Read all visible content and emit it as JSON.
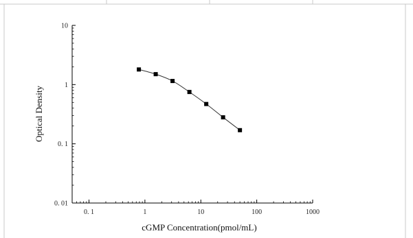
{
  "chart_data": {
    "type": "scatter",
    "title": "",
    "xlabel": "cGMP Concentration(pmol/mL)",
    "ylabel": "Optical Density",
    "xscale": "log",
    "yscale": "log",
    "xlim": [
      0.05,
      1000
    ],
    "ylim": [
      0.01,
      10
    ],
    "x_ticks": [
      {
        "value": 0.1,
        "label": "0. 1"
      },
      {
        "value": 1,
        "label": "1"
      },
      {
        "value": 10,
        "label": "10"
      },
      {
        "value": 100,
        "label": "100"
      },
      {
        "value": 1000,
        "label": "1000"
      }
    ],
    "y_ticks": [
      {
        "value": 0.01,
        "label": "0. 01"
      },
      {
        "value": 0.1,
        "label": "0. 1"
      },
      {
        "value": 1,
        "label": "1"
      },
      {
        "value": 10,
        "label": "10"
      }
    ],
    "grid": false,
    "series": [
      {
        "marker": "square",
        "line": "smooth",
        "x": [
          0.78,
          1.56,
          3.12,
          6.25,
          12.5,
          25,
          50
        ],
        "y": [
          1.8,
          1.5,
          1.15,
          0.75,
          0.47,
          0.28,
          0.17
        ]
      }
    ]
  },
  "colors": {
    "axis": "#000000",
    "marker": "#000000",
    "curve": "#333333",
    "frame": "#bbbbbb"
  }
}
